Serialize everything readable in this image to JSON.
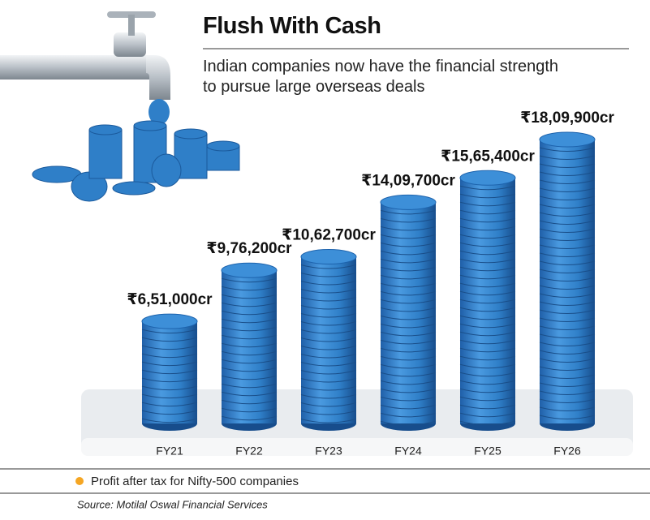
{
  "chart_data": {
    "type": "bar",
    "title": "Flush With Cash",
    "subtitle": "Indian companies now have the financial strength to pursue large overseas deals",
    "categories": [
      "FY21",
      "FY22",
      "FY23",
      "FY24",
      "FY25",
      "FY26"
    ],
    "series": [
      {
        "name": "Profit after tax for Nifty-500 companies",
        "color": "#2f7fc8",
        "values": [
          651000,
          976200,
          1062700,
          1409700,
          1565400,
          1809900
        ],
        "value_labels": [
          "₹6,51,000cr",
          "₹9,76,200cr",
          "₹10,62,700cr",
          "₹14,09,700cr",
          "₹15,65,400cr",
          "₹18,09,900cr"
        ]
      }
    ],
    "legend_marker_color": "#f5a623",
    "source": "Source: Motilal Oswal Financial Services"
  }
}
